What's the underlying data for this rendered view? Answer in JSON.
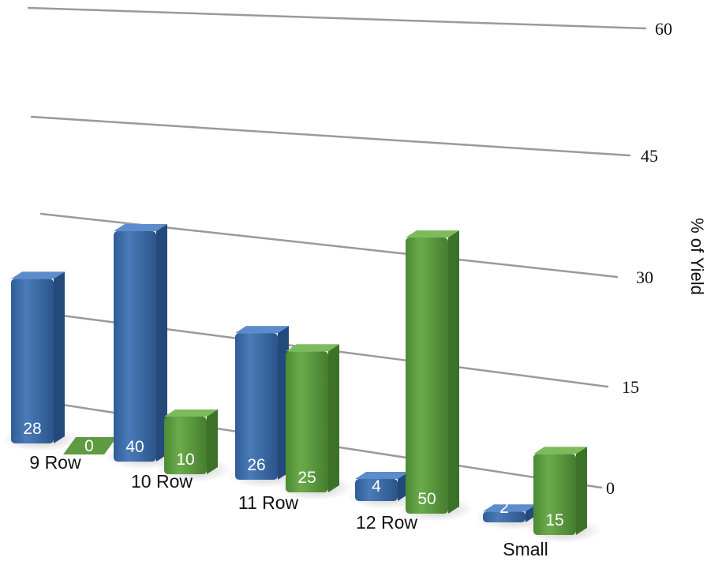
{
  "chart_data": {
    "type": "bar",
    "categories": [
      "9 Row",
      "10 Row",
      "11 Row",
      "12 Row",
      "Small"
    ],
    "series": [
      {
        "values": [
          28,
          40,
          26,
          4,
          2
        ],
        "color": "#3f6fa8"
      },
      {
        "values": [
          0,
          10,
          25,
          50,
          15
        ],
        "color": "#5f9b42"
      }
    ],
    "ylabel": "% of Yield",
    "yticks": [
      0,
      15,
      30,
      45,
      60
    ],
    "ylim": [
      0,
      60
    ],
    "grid": true,
    "style": "3d-perspective"
  }
}
